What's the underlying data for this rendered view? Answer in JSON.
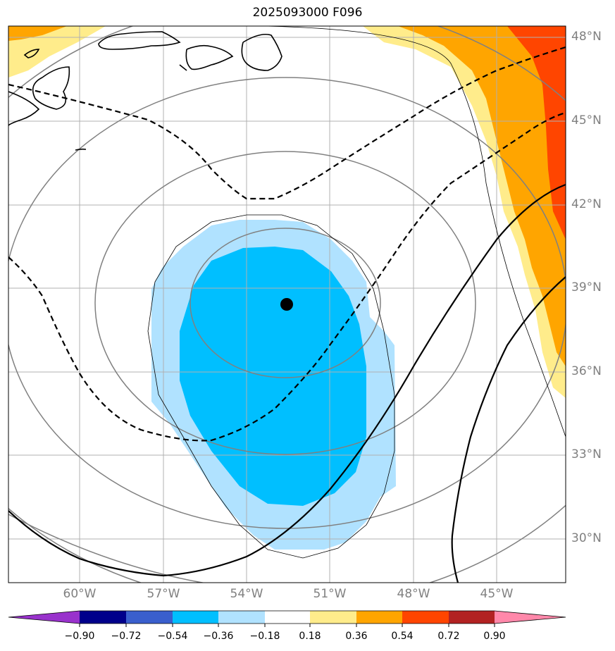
{
  "title": "2025093000 F096",
  "lat_labels": [
    "48°N",
    "45°N",
    "42°N",
    "39°N",
    "36°N",
    "33°N",
    "30°N"
  ],
  "lon_labels": [
    "60°W",
    "57°W",
    "54°W",
    "51°W",
    "48°W",
    "45°W"
  ],
  "colorbar": {
    "ticks": [
      "−0.90",
      "−0.72",
      "−0.54",
      "−0.36",
      "−0.18",
      "0.18",
      "0.36",
      "0.54",
      "0.72",
      "0.90"
    ],
    "colors": {
      "under": "#9932cc",
      "bins": [
        "#00008b",
        "#3a5fcd",
        "#00bfff",
        "#b0e2ff",
        "#ffffff",
        "#ffec8b",
        "#ffa500",
        "#ff4500",
        "#b22222"
      ],
      "over": "#ff88aa"
    }
  },
  "colors": {
    "light_blue": "#b0e2ff",
    "deep_sky_blue": "#00bfff",
    "light_yellow": "#ffec8b",
    "orange": "#ffa500",
    "orange_red": "#ff4500",
    "gray_contour": "#808080",
    "gridline": "#b0b0b0"
  },
  "center_marker": {
    "lon": -52.3,
    "lat": 38.4
  }
}
